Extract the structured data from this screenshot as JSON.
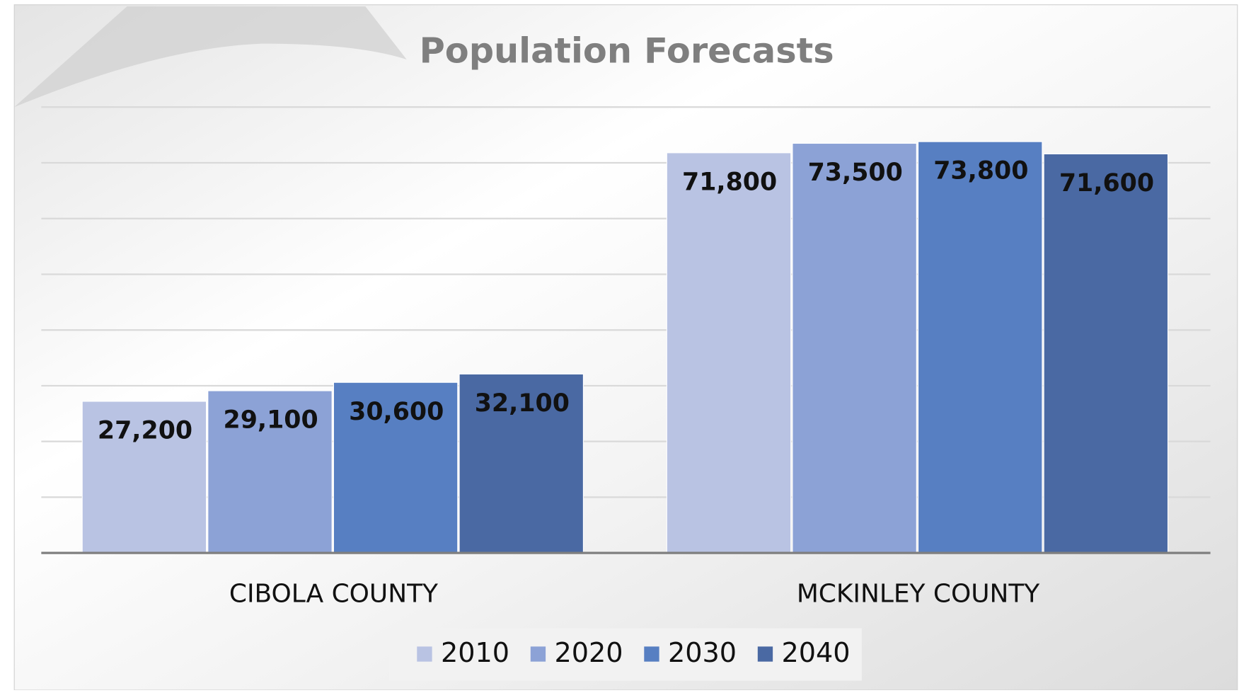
{
  "chart_data": {
    "type": "bar",
    "title": "Population Forecasts",
    "categories": [
      "CIBOLA COUNTY",
      "MCKINLEY COUNTY"
    ],
    "series": [
      {
        "name": "2010",
        "color": "#b9c3e3",
        "values": [
          27200,
          71800
        ],
        "value_labels": [
          "27,200",
          "71,800"
        ]
      },
      {
        "name": "2020",
        "color": "#8ca2d6",
        "values": [
          29100,
          73500
        ],
        "value_labels": [
          "29,100",
          "73,500"
        ]
      },
      {
        "name": "2030",
        "color": "#577fc2",
        "values": [
          30600,
          73800
        ],
        "value_labels": [
          "30,600",
          "73,800"
        ]
      },
      {
        "name": "2040",
        "color": "#4a69a3",
        "values": [
          32100,
          71600
        ],
        "value_labels": [
          "32,100",
          "71,600"
        ]
      }
    ],
    "ylim": [
      0,
      80000
    ],
    "yticks": [
      0,
      10000,
      20000,
      30000,
      40000,
      50000,
      60000,
      70000,
      80000
    ],
    "grid": true,
    "legend": "bottom"
  }
}
